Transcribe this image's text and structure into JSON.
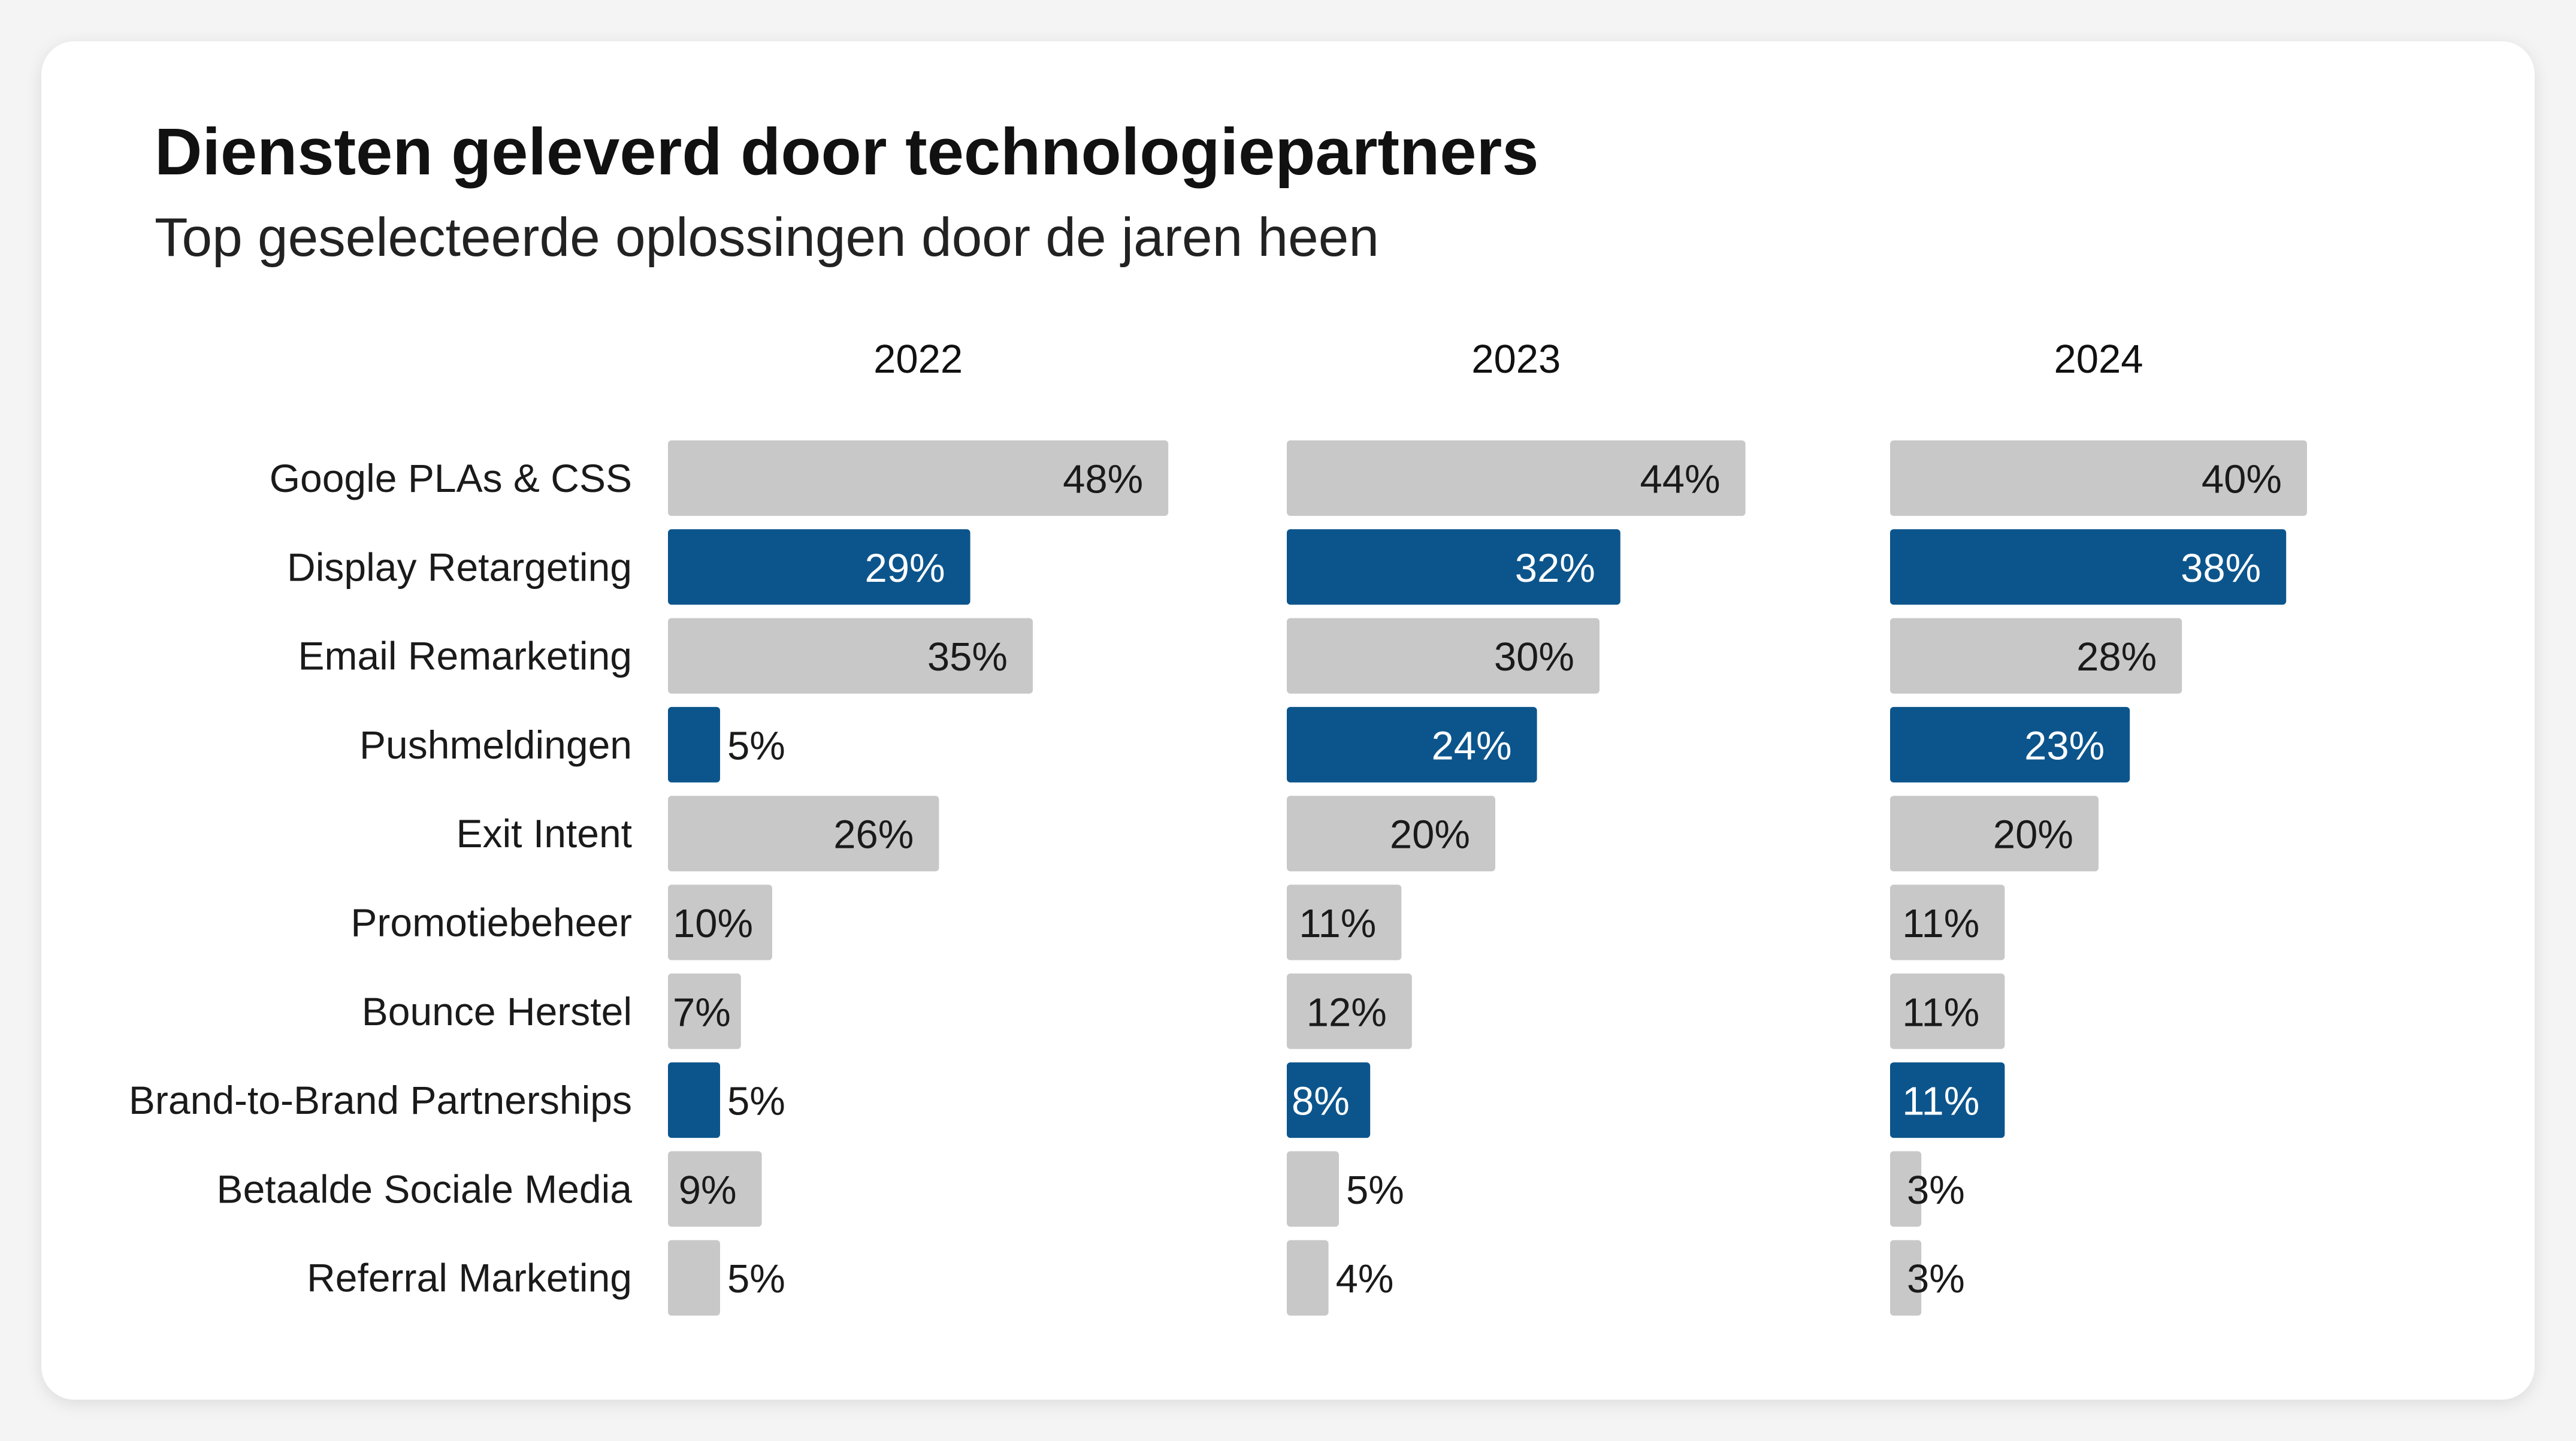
{
  "header": {
    "title": "Diensten geleverd door technologiepartners",
    "subtitle": "Top geselecteerde oplossingen door de jaren heen"
  },
  "colors": {
    "highlight": "#0c558c",
    "default": "#c8c8c8",
    "label_on_highlight": "#ffffff",
    "label_default": "#1a1a1a"
  },
  "chart_data": {
    "type": "bar",
    "orientation": "horizontal",
    "title": "Diensten geleverd door technologiepartners",
    "subtitle": "Top geselecteerde oplossingen door de jaren heen",
    "categories": [
      "Google PLAs & CSS",
      "Display Retargeting",
      "Email Remarketing",
      "Pushmeldingen",
      "Exit Intent",
      "Promotiebeheer",
      "Bounce Herstel",
      "Brand-to-Brand Partnerships",
      "Betaalde Sociale Media",
      "Referral Marketing"
    ],
    "series": [
      {
        "name": "2022",
        "values": [
          48,
          29,
          35,
          5,
          26,
          10,
          7,
          5,
          9,
          5
        ],
        "labels": [
          "48%",
          "29%",
          "35%",
          "5%",
          "26%",
          "10%",
          "7%",
          "5%",
          "9%",
          "5%"
        ],
        "highlighted": [
          false,
          true,
          false,
          true,
          false,
          false,
          false,
          true,
          false,
          false
        ]
      },
      {
        "name": "2023",
        "values": [
          44,
          32,
          30,
          24,
          20,
          11,
          12,
          8,
          5,
          4
        ],
        "labels": [
          "44%",
          "32%",
          "30%",
          "24%",
          "20%",
          "11%",
          "12%",
          "8%",
          "5%",
          "4%"
        ],
        "highlighted": [
          false,
          true,
          false,
          true,
          false,
          false,
          false,
          true,
          false,
          false
        ]
      },
      {
        "name": "2024",
        "values": [
          40,
          38,
          28,
          23,
          20,
          11,
          11,
          11,
          3,
          3
        ],
        "labels": [
          "40%",
          "38%",
          "28%",
          "23%",
          "20%",
          "11%",
          "11%",
          "11%",
          "3%",
          "3%"
        ],
        "highlighted": [
          false,
          true,
          false,
          true,
          false,
          false,
          false,
          true,
          false,
          false
        ]
      }
    ],
    "xlabel": "",
    "ylabel": "",
    "grid": false
  }
}
